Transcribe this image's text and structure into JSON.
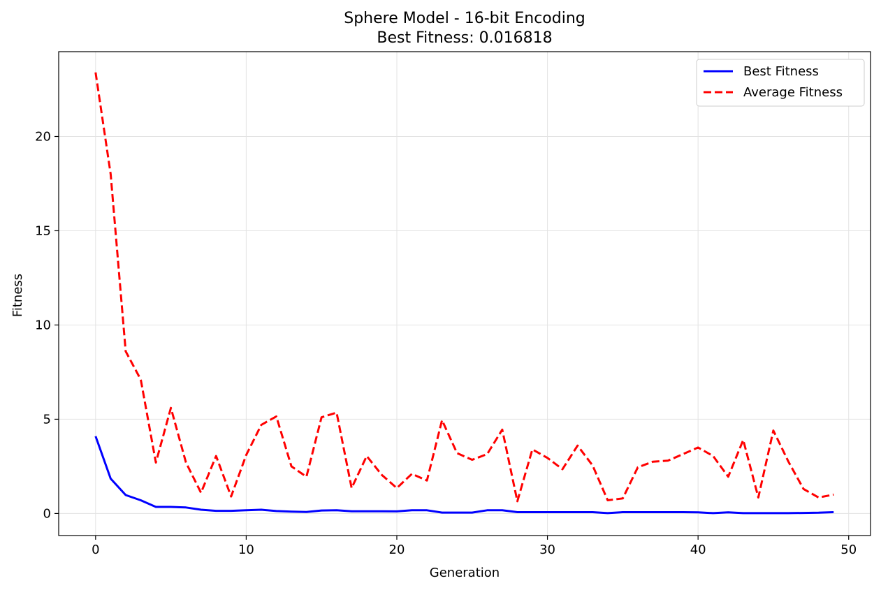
{
  "chart_data": {
    "type": "line",
    "title": "Sphere Model - 16-bit Encoding",
    "subtitle": "Best Fitness: 0.016818",
    "xlabel": "Generation",
    "ylabel": "Fitness",
    "xlim": [
      -2.45,
      51.45
    ],
    "ylim": [
      -1.17,
      24.5
    ],
    "xticks": [
      0,
      10,
      20,
      30,
      40,
      50
    ],
    "yticks": [
      0,
      5,
      10,
      15,
      20
    ],
    "grid": true,
    "legend_position": "top-right",
    "x": [
      0,
      1,
      2,
      3,
      4,
      5,
      6,
      7,
      8,
      9,
      10,
      11,
      12,
      13,
      14,
      15,
      16,
      17,
      18,
      19,
      20,
      21,
      22,
      23,
      24,
      25,
      26,
      27,
      28,
      29,
      30,
      31,
      32,
      33,
      34,
      35,
      36,
      37,
      38,
      39,
      40,
      41,
      42,
      43,
      44,
      45,
      46,
      47,
      48,
      49
    ],
    "series": [
      {
        "name": "Best Fitness",
        "color": "#0000ff",
        "style": "solid",
        "values": [
          4.1,
          1.85,
          0.98,
          0.7,
          0.35,
          0.35,
          0.32,
          0.2,
          0.14,
          0.14,
          0.17,
          0.2,
          0.13,
          0.1,
          0.08,
          0.16,
          0.17,
          0.12,
          0.12,
          0.12,
          0.11,
          0.17,
          0.17,
          0.05,
          0.05,
          0.05,
          0.17,
          0.17,
          0.07,
          0.07,
          0.07,
          0.07,
          0.07,
          0.07,
          0.02,
          0.07,
          0.07,
          0.07,
          0.07,
          0.07,
          0.06,
          0.02,
          0.06,
          0.02,
          0.02,
          0.02,
          0.02,
          0.03,
          0.04,
          0.07
        ]
      },
      {
        "name": "Average Fitness",
        "color": "#ff0000",
        "style": "dashed",
        "values": [
          23.4,
          18.0,
          8.6,
          7.1,
          2.7,
          5.6,
          2.7,
          1.1,
          3.05,
          0.9,
          3.1,
          4.7,
          5.15,
          2.5,
          1.95,
          5.1,
          5.35,
          1.35,
          3.05,
          2.05,
          1.35,
          2.1,
          1.75,
          4.95,
          3.2,
          2.85,
          3.15,
          4.45,
          0.65,
          3.4,
          2.95,
          2.35,
          3.6,
          2.55,
          0.7,
          0.8,
          2.45,
          2.75,
          2.8,
          3.15,
          3.5,
          3.05,
          1.95,
          3.9,
          0.85,
          4.4,
          2.75,
          1.3,
          0.85,
          1.0
        ]
      }
    ]
  }
}
